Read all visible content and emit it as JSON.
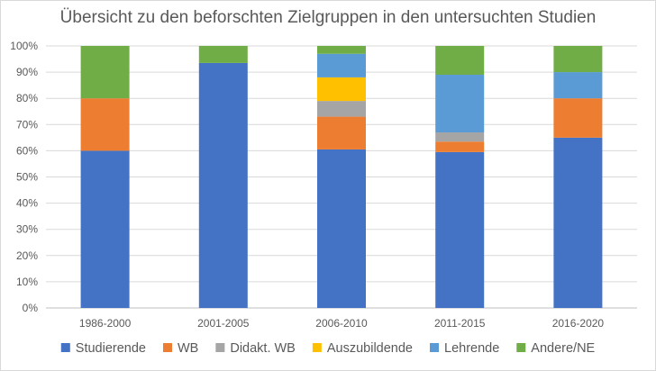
{
  "chart_data": {
    "type": "bar",
    "stacked": true,
    "title": "Übersicht zu den beforschten Zielgruppen in den untersuchten Studien",
    "xlabel": "",
    "ylabel": "",
    "ylim": [
      0,
      100
    ],
    "y_ticks": [
      "0%",
      "10%",
      "20%",
      "30%",
      "40%",
      "50%",
      "60%",
      "70%",
      "80%",
      "90%",
      "100%"
    ],
    "grid": true,
    "legend_position": "bottom",
    "categories": [
      "1986-2000",
      "2001-2005",
      "2006-2010",
      "2011-2015",
      "2016-2020"
    ],
    "series": [
      {
        "name": "Studierende",
        "color": "#4472c4",
        "values": [
          60,
          93.5,
          60.5,
          59.5,
          65
        ]
      },
      {
        "name": "WB",
        "color": "#ed7d31",
        "values": [
          20,
          0,
          12.5,
          4,
          15
        ]
      },
      {
        "name": "Didakt. WB",
        "color": "#a5a5a5",
        "values": [
          0,
          0,
          6,
          3.5,
          0
        ]
      },
      {
        "name": "Auszubildende",
        "color": "#ffc000",
        "values": [
          0,
          0,
          9,
          0,
          0
        ]
      },
      {
        "name": "Lehrende",
        "color": "#5b9bd5",
        "values": [
          0,
          0,
          9,
          22,
          10
        ]
      },
      {
        "name": "Andere/NE",
        "color": "#70ad47",
        "values": [
          20,
          6.5,
          3,
          11,
          10
        ]
      }
    ]
  }
}
